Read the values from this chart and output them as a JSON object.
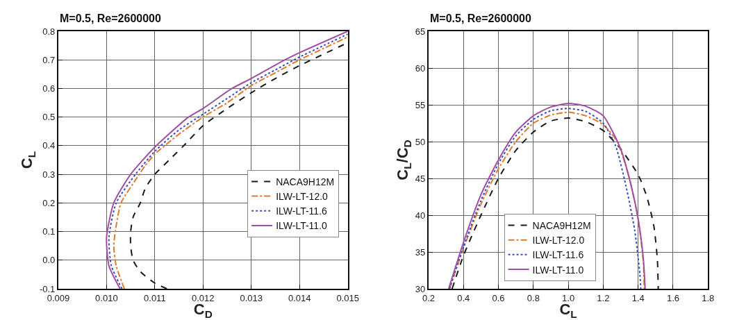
{
  "chart_data": [
    {
      "type": "line",
      "title": "M=0.5, Re=2600000",
      "xlabel": "C$_{D}$",
      "ylabel": "C$_{L}$",
      "xlim": [
        0.009,
        0.015
      ],
      "ylim": [
        -0.1,
        0.8
      ],
      "xticks": [
        {
          "value": 0.009,
          "label": "0.009"
        },
        {
          "value": 0.01,
          "label": "0.010"
        },
        0.011,
        0.012,
        0.013,
        0.014,
        0.015
      ],
      "yticks": [
        -0.1,
        {
          "value": 0,
          "label": "0.0"
        },
        0.1,
        0.2,
        0.3,
        0.4,
        0.5,
        0.6,
        0.7,
        0.8
      ],
      "grid": true,
      "legend": "bottom right",
      "series": [
        {
          "name": "NACA9H12M",
          "color": "#1a1a1a",
          "line_style": "dashed",
          "x": [
            0.01125,
            0.011,
            0.0107,
            0.01055,
            0.0105,
            0.0105,
            0.01055,
            0.0107,
            0.0108,
            0.011,
            0.0113,
            0.0116,
            0.012,
            0.0125,
            0.013,
            0.0135,
            0.014,
            0.0145,
            0.015
          ],
          "values": [
            -0.1,
            -0.08,
            -0.04,
            0.0,
            0.05,
            0.1,
            0.15,
            0.2,
            0.25,
            0.3,
            0.35,
            0.4,
            0.47,
            0.53,
            0.585,
            0.635,
            0.68,
            0.72,
            0.76
          ]
        },
        {
          "name": "ILW-LT-12.0",
          "color": "#e07b29",
          "line_style": "dashdot",
          "x": [
            0.01037,
            0.0102,
            0.01015,
            0.0102,
            0.0103,
            0.0106,
            0.0108,
            0.011,
            0.0115,
            0.012,
            0.0125,
            0.013,
            0.0135,
            0.014,
            0.0145,
            0.015
          ],
          "values": [
            -0.1,
            -0.02,
            0.05,
            0.12,
            0.2,
            0.28,
            0.33,
            0.37,
            0.44,
            0.5,
            0.55,
            0.61,
            0.655,
            0.7,
            0.74,
            0.78
          ]
        },
        {
          "name": "ILW-LT-11.6",
          "color": "#3b4cc0",
          "line_style": "dotted",
          "x": [
            0.01032,
            0.0101,
            0.01005,
            0.0102,
            0.0106,
            0.011,
            0.0115,
            0.012,
            0.0125,
            0.013,
            0.0135,
            0.014,
            0.0145,
            0.015
          ],
          "values": [
            -0.1,
            -0.02,
            0.08,
            0.2,
            0.3,
            0.38,
            0.455,
            0.51,
            0.565,
            0.62,
            0.665,
            0.71,
            0.75,
            0.79
          ]
        },
        {
          "name": "ILW-LT-11.0",
          "color": "#a24ca6",
          "line_style": "solid",
          "x": [
            0.01028,
            0.01005,
            0.01,
            0.01015,
            0.0105,
            0.011,
            0.0117,
            0.012,
            0.0126,
            0.013,
            0.0137,
            0.014,
            0.015
          ],
          "values": [
            -0.1,
            -0.02,
            0.08,
            0.2,
            0.3,
            0.395,
            0.5,
            0.53,
            0.6,
            0.635,
            0.7,
            0.725,
            0.8
          ]
        }
      ]
    },
    {
      "type": "line",
      "title": "M=0.5, Re=2600000",
      "xlabel": "C$_{L}$",
      "ylabel": "C$_{L}$/C$_{D}$",
      "xlim": [
        0.2,
        1.8
      ],
      "ylim": [
        30,
        65
      ],
      "xticks": [
        0.2,
        0.4,
        0.6,
        0.8,
        {
          "value": 1,
          "label": "1.0"
        },
        1.2,
        1.4,
        1.6,
        1.8
      ],
      "yticks": [
        30,
        35,
        40,
        45,
        50,
        55,
        60,
        65
      ],
      "grid": true,
      "legend": "bottom",
      "series": [
        {
          "name": "NACA9H12M",
          "color": "#1a1a1a",
          "line_style": "dashed",
          "x": [
            0.335,
            0.4,
            0.5,
            0.6,
            0.7,
            0.8,
            0.9,
            1.0,
            1.1,
            1.2,
            1.3,
            1.4,
            1.45,
            1.49,
            1.51,
            1.515
          ],
          "values": [
            30,
            34.5,
            40,
            45,
            48.8,
            51.3,
            52.8,
            53.2,
            52.7,
            51.5,
            49,
            45.5,
            42.5,
            38.5,
            34,
            30
          ]
        },
        {
          "name": "ILW-LT-12.0",
          "color": "#e07b29",
          "line_style": "dashdot",
          "x": [
            0.32,
            0.4,
            0.5,
            0.6,
            0.7,
            0.8,
            0.9,
            1.0,
            1.1,
            1.2,
            1.28,
            1.35,
            1.4,
            1.43,
            1.435
          ],
          "values": [
            30,
            35.5,
            41.5,
            46.3,
            50,
            52.5,
            53.6,
            54,
            53.5,
            52.3,
            50,
            45,
            39.5,
            33.5,
            30
          ]
        },
        {
          "name": "ILW-LT-11.6",
          "color": "#3b4cc0",
          "line_style": "dotted",
          "x": [
            0.32,
            0.4,
            0.5,
            0.6,
            0.7,
            0.8,
            0.9,
            1.0,
            1.1,
            1.2,
            1.27,
            1.33,
            1.38,
            1.41,
            1.415
          ],
          "values": [
            30,
            35.7,
            42,
            47,
            50.8,
            53,
            54.2,
            54.5,
            54.1,
            52.5,
            49.5,
            44,
            38,
            32,
            30
          ]
        },
        {
          "name": "ILW-LT-11.0",
          "color": "#a24ca6",
          "line_style": "solid",
          "x": [
            0.315,
            0.4,
            0.5,
            0.6,
            0.7,
            0.8,
            0.9,
            1.0,
            1.1,
            1.2,
            1.3,
            1.36,
            1.4,
            1.43,
            1.44
          ],
          "values": [
            30,
            36.3,
            42.8,
            47.5,
            51.3,
            53.5,
            54.7,
            55.2,
            54.8,
            53.5,
            49,
            44,
            39.5,
            34,
            30
          ]
        }
      ]
    }
  ]
}
